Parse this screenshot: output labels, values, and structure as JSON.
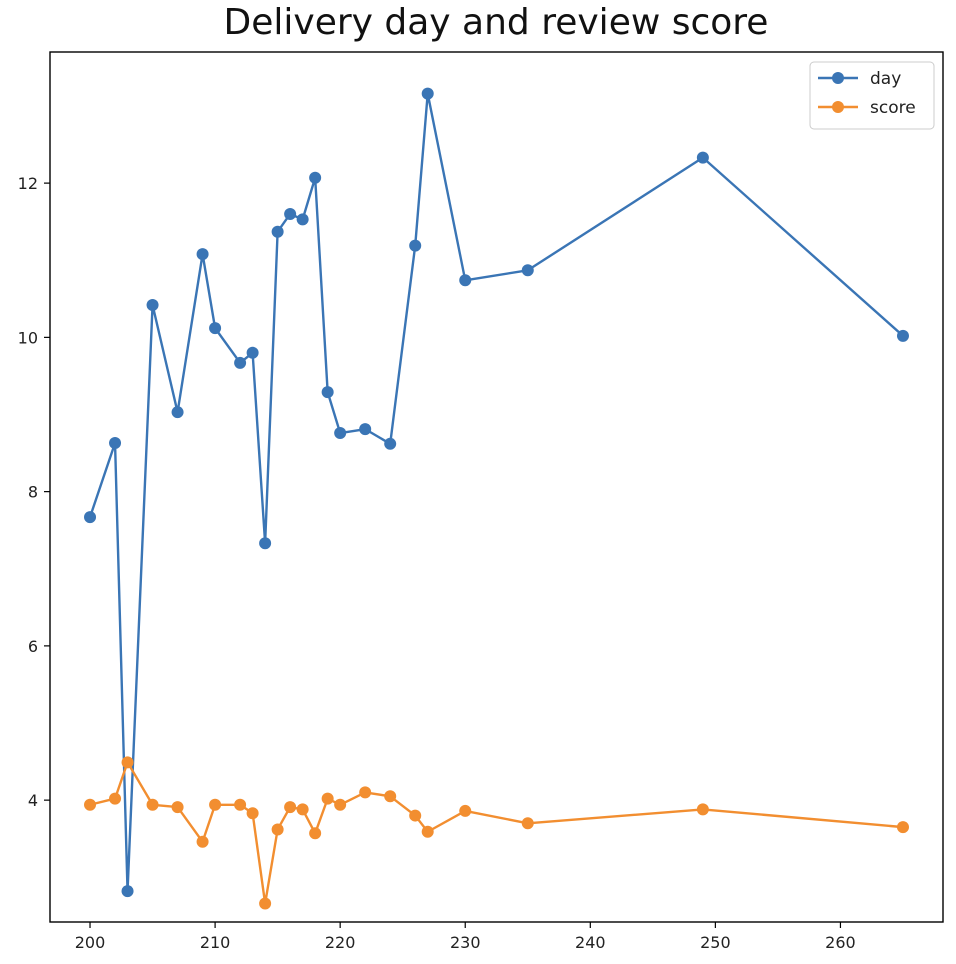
{
  "chart_data": {
    "type": "line",
    "title": "Delivery day and review score",
    "xlabel": "",
    "ylabel": "",
    "xlim": [
      196.8,
      268.2
    ],
    "ylim": [
      2.42,
      13.7
    ],
    "xticks": [
      200,
      210,
      220,
      230,
      240,
      250,
      260
    ],
    "yticks": [
      4,
      6,
      8,
      10,
      12
    ],
    "grid": false,
    "legend_position": "top-right",
    "x": [
      200,
      202,
      203,
      205,
      207,
      209,
      210,
      212,
      213,
      214,
      215,
      216,
      217,
      218,
      219,
      220,
      222,
      224,
      226,
      227,
      230,
      235,
      249,
      265
    ],
    "series": [
      {
        "name": "day",
        "color": "#3a75b5",
        "marker": "circle",
        "values": [
          7.67,
          8.63,
          2.82,
          10.42,
          9.03,
          11.08,
          10.12,
          9.67,
          9.8,
          7.33,
          11.37,
          11.6,
          11.53,
          12.07,
          9.29,
          8.76,
          8.81,
          8.62,
          11.19,
          13.16,
          10.74,
          10.87,
          12.33,
          10.02
        ]
      },
      {
        "name": "score",
        "color": "#f28e30",
        "marker": "circle",
        "values": [
          3.94,
          4.02,
          4.49,
          3.94,
          3.91,
          3.46,
          3.94,
          3.94,
          3.83,
          2.66,
          3.62,
          3.91,
          3.88,
          3.57,
          4.02,
          3.94,
          4.1,
          4.05,
          3.8,
          3.59,
          3.86,
          3.7,
          3.88,
          3.65
        ]
      }
    ]
  }
}
